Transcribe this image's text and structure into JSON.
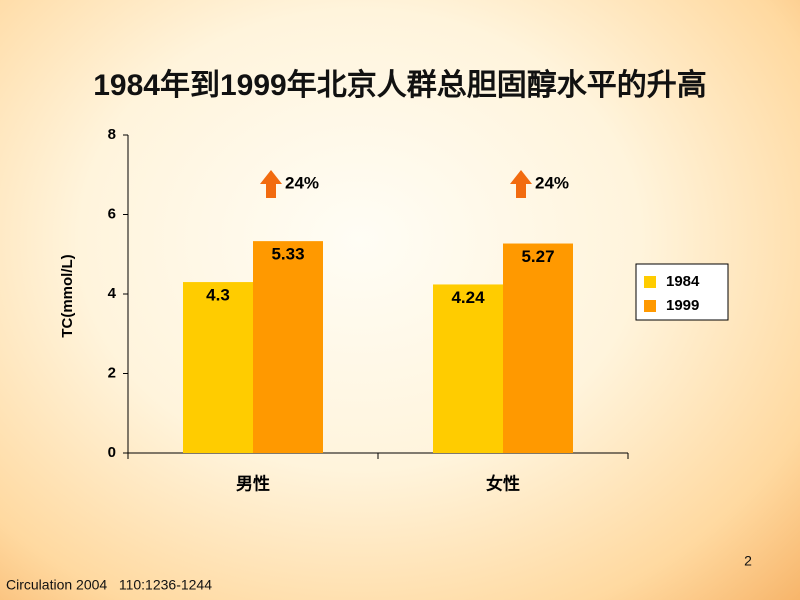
{
  "chart_data": {
    "type": "bar",
    "title": "1984年到1999年北京人群总胆固醇水平的升高",
    "y_label": "TC(mmol/L)",
    "categories": [
      "男性",
      "女性"
    ],
    "series": [
      {
        "name": "1984",
        "color": "#ffcc00",
        "values": [
          4.3,
          4.24
        ]
      },
      {
        "name": "1999",
        "color": "#ff9900",
        "values": [
          5.33,
          5.27
        ]
      }
    ],
    "annotations": [
      "24%",
      "24%"
    ],
    "ylim": [
      0,
      8
    ],
    "yticks": [
      0,
      2,
      4,
      6,
      8
    ],
    "legend": "right"
  },
  "source": "Circulation 2004   110:1236-1244",
  "page_number": "2"
}
